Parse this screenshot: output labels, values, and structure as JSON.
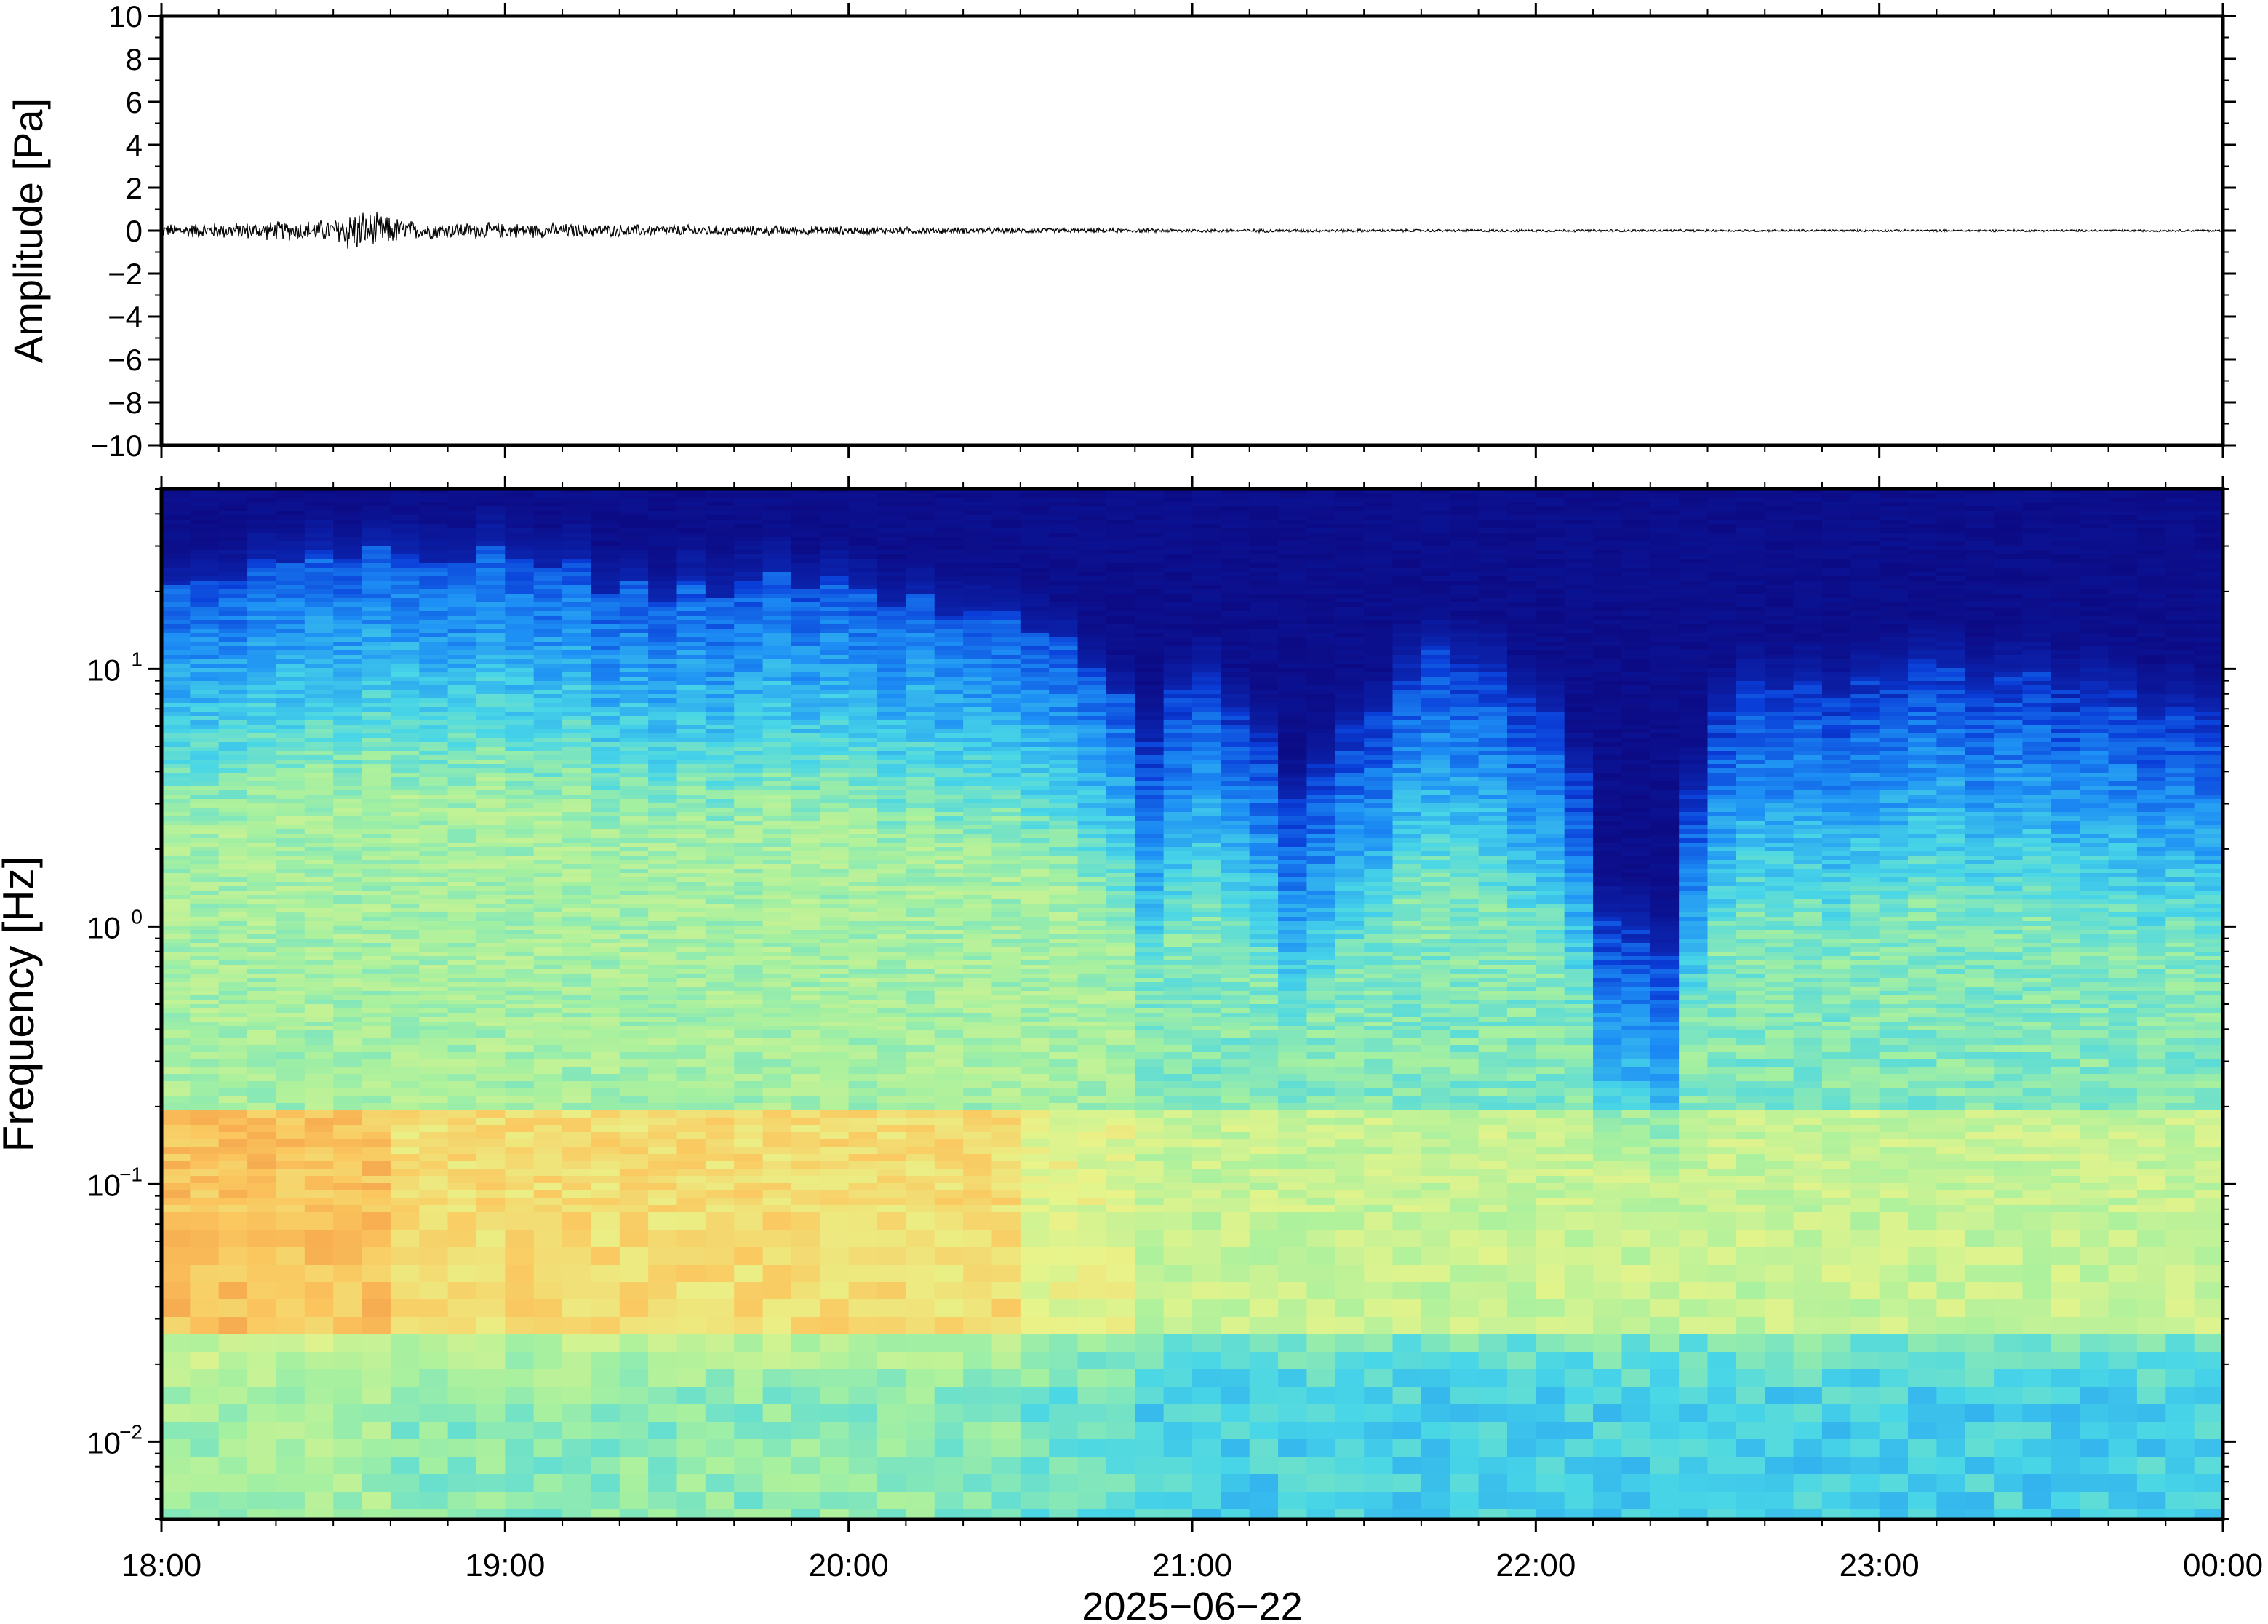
{
  "chart_data": [
    {
      "type": "line",
      "panel": "waveform",
      "ylabel": "Amplitude [Pa]",
      "ylim": [
        -10,
        10
      ],
      "yticks": [
        "10",
        "8",
        "6",
        "4",
        "2",
        "0",
        "−2",
        "−4",
        "−6",
        "−8",
        "−10"
      ],
      "yticks_values": [
        10,
        8,
        6,
        4,
        2,
        0,
        -2,
        -4,
        -6,
        -8,
        -10
      ],
      "xlim": [
        "18:00",
        "00:00"
      ],
      "envelope": {
        "x_hours": [
          18.0,
          18.25,
          18.5,
          18.55,
          18.75,
          19.0,
          19.25,
          19.5,
          20.0,
          20.5,
          21.0,
          21.5,
          22.0,
          23.0,
          24.0
        ],
        "amplitude_pa": [
          0.35,
          0.45,
          0.6,
          1.2,
          0.45,
          0.4,
          0.35,
          0.3,
          0.22,
          0.15,
          0.1,
          0.08,
          0.07,
          0.06,
          0.06
        ]
      },
      "line_color": "#000000"
    },
    {
      "type": "heatmap",
      "panel": "spectrogram",
      "ylabel": "Frequency [Hz]",
      "xlabel": "2025−06−22",
      "yscale": "log",
      "ylim": [
        0.005,
        50
      ],
      "yticks": [
        {
          "base": "10",
          "exp": "−2",
          "value": 0.01
        },
        {
          "base": "10",
          "exp": "−1",
          "value": 0.1
        },
        {
          "base": "10",
          "exp": "0",
          "value": 1
        },
        {
          "base": "10",
          "exp": "1",
          "value": 10
        }
      ],
      "xticks": [
        "18:00",
        "19:00",
        "20:00",
        "21:00",
        "22:00",
        "23:00",
        "00:00"
      ],
      "xticks_hours": [
        18,
        19,
        20,
        21,
        22,
        23,
        24
      ],
      "colormap": [
        "#0c0277",
        "#0a3dd8",
        "#1d8ff5",
        "#48d6e7",
        "#a5f0a0",
        "#e8f48a",
        "#fbc65e",
        "#f08a3e"
      ],
      "upper_edge_hz": {
        "x_hours": [
          18.0,
          18.5,
          19.0,
          19.5,
          19.75,
          20.0,
          20.5,
          20.7,
          20.85,
          21.0,
          21.3,
          21.6,
          21.8,
          22.0,
          22.2,
          22.4,
          22.6,
          22.8,
          23.0,
          23.5,
          24.0
        ],
        "value_hz": [
          22,
          32,
          28,
          20,
          25,
          20,
          16,
          12,
          4,
          10,
          3,
          9,
          13,
          8,
          1.0,
          0.9,
          10,
          8,
          10,
          9,
          6
        ]
      },
      "hot_band_hz": [
        0.03,
        0.2
      ],
      "hot_regions": [
        {
          "x_hours": [
            18.0,
            18.7
          ],
          "freq_hz": [
            0.03,
            0.15
          ],
          "level": "high"
        },
        {
          "x_hours": [
            18.7,
            20.5
          ],
          "freq_hz": [
            0.04,
            0.12
          ],
          "level": "medium"
        }
      ]
    }
  ]
}
